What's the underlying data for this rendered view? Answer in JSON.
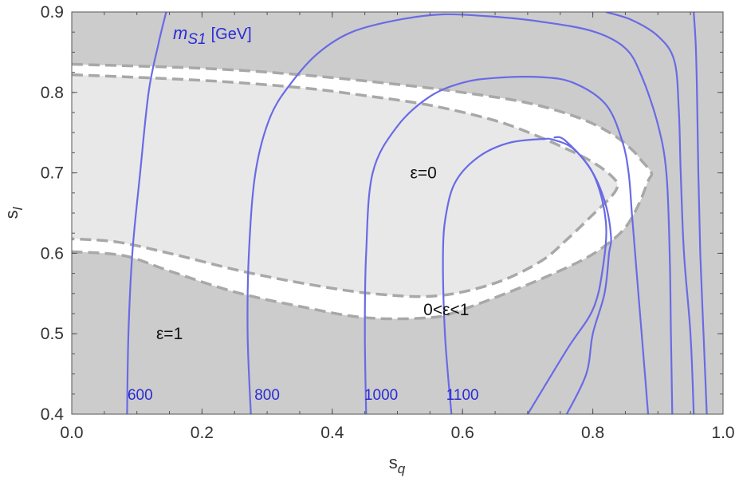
{
  "chart_data": {
    "type": "contour",
    "xlabel": "s_q",
    "ylabel": "s_l",
    "xlim": [
      0.0,
      1.0
    ],
    "ylim": [
      0.4,
      0.9
    ],
    "x_ticks": [
      "0.0",
      "0.2",
      "0.4",
      "0.6",
      "0.8",
      "1.0"
    ],
    "y_ticks": [
      "0.4",
      "0.5",
      "0.6",
      "0.7",
      "0.8",
      "0.9"
    ],
    "contour_legend": {
      "symbol": "m",
      "subscript": "S1",
      "unit": "[GeV]"
    },
    "regions": [
      {
        "label": "ε=1",
        "label_pos": [
          0.15,
          0.5
        ],
        "fill": "#cccccc"
      },
      {
        "label": "0<ε<1",
        "label_pos": [
          0.575,
          0.53
        ],
        "fill": "#ffffff"
      },
      {
        "label": "ε=0",
        "label_pos": [
          0.54,
          0.7
        ],
        "fill": "#e8e8e8"
      }
    ],
    "boundaries": {
      "outer": [
        [
          0.0,
          0.835
        ],
        [
          0.2,
          0.83
        ],
        [
          0.35,
          0.822
        ],
        [
          0.5,
          0.81
        ],
        [
          0.6,
          0.8
        ],
        [
          0.7,
          0.787
        ],
        [
          0.78,
          0.768
        ],
        [
          0.83,
          0.748
        ],
        [
          0.86,
          0.729
        ],
        [
          0.875,
          0.715
        ],
        [
          0.89,
          0.7
        ],
        [
          0.885,
          0.69
        ],
        [
          0.87,
          0.66
        ],
        [
          0.85,
          0.632
        ],
        [
          0.82,
          0.61
        ],
        [
          0.78,
          0.59
        ],
        [
          0.7,
          0.561
        ],
        [
          0.6,
          0.53
        ],
        [
          0.55,
          0.52
        ],
        [
          0.45,
          0.52
        ],
        [
          0.35,
          0.534
        ],
        [
          0.25,
          0.552
        ],
        [
          0.15,
          0.578
        ],
        [
          0.08,
          0.597
        ],
        [
          0.0,
          0.602
        ]
      ],
      "inner": [
        [
          0.0,
          0.822
        ],
        [
          0.2,
          0.815
        ],
        [
          0.35,
          0.806
        ],
        [
          0.45,
          0.796
        ],
        [
          0.55,
          0.784
        ],
        [
          0.65,
          0.765
        ],
        [
          0.72,
          0.744
        ],
        [
          0.78,
          0.722
        ],
        [
          0.81,
          0.708
        ],
        [
          0.83,
          0.695
        ],
        [
          0.838,
          0.685
        ],
        [
          0.83,
          0.672
        ],
        [
          0.8,
          0.648
        ],
        [
          0.76,
          0.617
        ],
        [
          0.72,
          0.59
        ],
        [
          0.65,
          0.563
        ],
        [
          0.56,
          0.547
        ],
        [
          0.46,
          0.55
        ],
        [
          0.36,
          0.562
        ],
        [
          0.26,
          0.578
        ],
        [
          0.15,
          0.6
        ],
        [
          0.07,
          0.614
        ],
        [
          0.0,
          0.618
        ]
      ]
    },
    "contours": [
      {
        "label": "600",
        "label_pos": [
          0.105,
          0.425
        ],
        "points": [
          [
            0.085,
            0.4
          ],
          [
            0.087,
            0.5
          ],
          [
            0.093,
            0.6
          ],
          [
            0.105,
            0.7
          ],
          [
            0.118,
            0.8
          ],
          [
            0.133,
            0.86
          ],
          [
            0.145,
            0.9
          ]
        ]
      },
      {
        "label": "800",
        "label_pos": [
          0.3,
          0.425
        ],
        "points": [
          [
            0.275,
            0.4
          ],
          [
            0.27,
            0.5
          ],
          [
            0.272,
            0.6
          ],
          [
            0.282,
            0.7
          ],
          [
            0.305,
            0.77
          ],
          [
            0.34,
            0.815
          ],
          [
            0.38,
            0.85
          ],
          [
            0.43,
            0.875
          ],
          [
            0.5,
            0.89
          ],
          [
            0.57,
            0.897
          ],
          [
            0.65,
            0.894
          ],
          [
            0.72,
            0.888
          ],
          [
            0.8,
            0.876
          ],
          [
            0.85,
            0.855
          ],
          [
            0.875,
            0.82
          ],
          [
            0.9,
            0.76
          ],
          [
            0.913,
            0.7
          ],
          [
            0.918,
            0.6
          ],
          [
            0.92,
            0.5
          ],
          [
            0.922,
            0.4
          ]
        ]
      },
      {
        "label": "1000",
        "label_pos": [
          0.475,
          0.425
        ],
        "points": [
          [
            0.452,
            0.4
          ],
          [
            0.45,
            0.5
          ],
          [
            0.452,
            0.6
          ],
          [
            0.462,
            0.7
          ],
          [
            0.5,
            0.758
          ],
          [
            0.55,
            0.795
          ],
          [
            0.6,
            0.812
          ],
          [
            0.65,
            0.818
          ],
          [
            0.72,
            0.819
          ],
          [
            0.77,
            0.812
          ],
          [
            0.82,
            0.785
          ],
          [
            0.845,
            0.74
          ],
          [
            0.855,
            0.7
          ],
          [
            0.86,
            0.65
          ],
          [
            0.865,
            0.6
          ],
          [
            0.875,
            0.5
          ],
          [
            0.88,
            0.45
          ],
          [
            0.885,
            0.4
          ]
        ]
      },
      {
        "label": "1100",
        "label_pos": [
          0.6,
          0.425
        ],
        "points": [
          [
            0.583,
            0.4
          ],
          [
            0.573,
            0.5
          ],
          [
            0.57,
            0.6
          ],
          [
            0.575,
            0.65
          ],
          [
            0.59,
            0.69
          ],
          [
            0.625,
            0.72
          ],
          [
            0.67,
            0.737
          ],
          [
            0.72,
            0.742
          ],
          [
            0.74,
            0.741
          ],
          [
            0.77,
            0.73
          ],
          [
            0.8,
            0.7
          ],
          [
            0.82,
            0.66
          ],
          [
            0.828,
            0.62
          ],
          [
            0.825,
            0.6
          ],
          [
            0.818,
            0.55
          ],
          [
            0.8,
            0.5
          ],
          [
            0.79,
            0.45
          ],
          [
            0.76,
            0.4
          ]
        ]
      },
      {
        "label": "",
        "points": [
          [
            0.7,
            0.4
          ],
          [
            0.76,
            0.48
          ],
          [
            0.8,
            0.53
          ],
          [
            0.815,
            0.58
          ],
          [
            0.82,
            0.64
          ],
          [
            0.8,
            0.7
          ],
          [
            0.758,
            0.74
          ],
          [
            0.74,
            0.744
          ]
        ]
      },
      {
        "label": "",
        "points": [
          [
            0.955,
            0.4
          ],
          [
            0.95,
            0.5
          ],
          [
            0.94,
            0.6
          ],
          [
            0.935,
            0.7
          ],
          [
            0.932,
            0.78
          ],
          [
            0.925,
            0.84
          ],
          [
            0.9,
            0.87
          ],
          [
            0.86,
            0.89
          ],
          [
            0.82,
            0.9
          ]
        ]
      },
      {
        "label": "",
        "points": [
          [
            0.975,
            0.4
          ],
          [
            0.97,
            0.5
          ],
          [
            0.965,
            0.6
          ],
          [
            0.962,
            0.7
          ],
          [
            0.96,
            0.8
          ],
          [
            0.958,
            0.86
          ],
          [
            0.955,
            0.9
          ]
        ]
      }
    ],
    "colors": {
      "region_outer": "#cccccc",
      "region_band": "#ffffff",
      "region_inner": "#e8e8e8",
      "boundary": "#a8a8a8",
      "contour": "#6a6ae6",
      "contour_label": "#2b2bd6",
      "axis": "#555555"
    }
  }
}
